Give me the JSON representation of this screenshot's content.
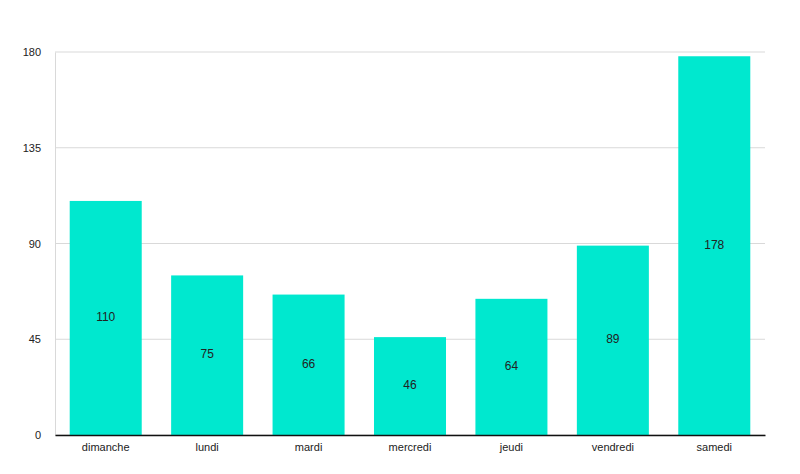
{
  "chart_data": {
    "type": "bar",
    "categories": [
      "dimanche",
      "lundi",
      "mardi",
      "mercredi",
      "jeudi",
      "vendredi",
      "samedi"
    ],
    "values": [
      110,
      75,
      66,
      46,
      64,
      89,
      178
    ],
    "color": "#00e8cf",
    "ylim": [
      0,
      180
    ],
    "yticks": [
      0,
      45,
      90,
      135,
      180
    ],
    "grid": true,
    "data_labels": true
  }
}
